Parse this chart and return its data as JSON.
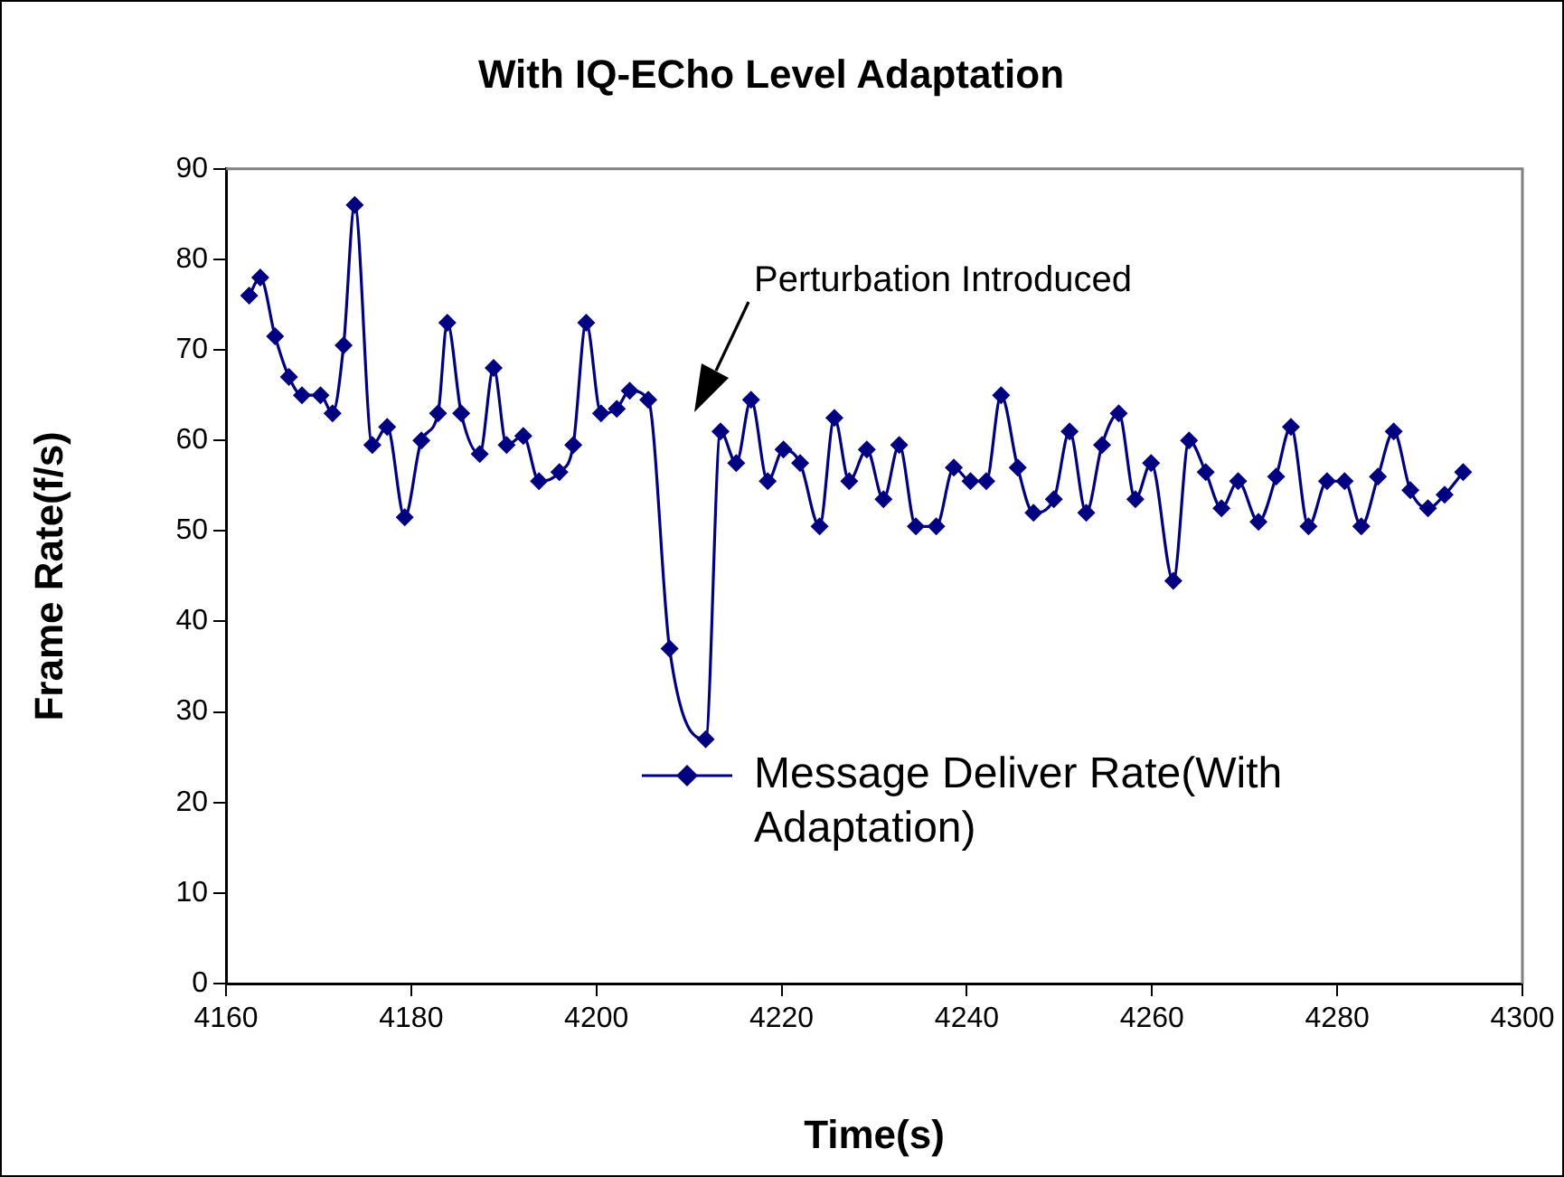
{
  "chart_data": {
    "type": "line",
    "title": "With IQ-ECho Level Adaptation",
    "xlabel": "Time(s)",
    "ylabel": "Frame Rate(f/s)",
    "xlim": [
      4160,
      4300
    ],
    "xticks": [
      4160,
      4180,
      4200,
      4220,
      4240,
      4260,
      4280,
      4300
    ],
    "ylim": [
      0,
      90
    ],
    "yticks": [
      0,
      10,
      20,
      30,
      40,
      50,
      60,
      70,
      80,
      90
    ],
    "grid": false,
    "legend": "bottom",
    "marker": "diamond",
    "line_style": "solid",
    "annotations": [
      "Perturbation Introduced"
    ],
    "series": [
      {
        "name": "Message Deliver Rate(With Adaptation)",
        "color": "#000080",
        "x": [
          4162.5,
          4163.7,
          4165.3,
          4166.8,
          4168.2,
          4170.2,
          4171.5,
          4172.7,
          4173.9,
          4175.8,
          4177.4,
          4179.3,
          4181.1,
          4182.9,
          4183.9,
          4185.4,
          4187.4,
          4188.9,
          4190.3,
          4192.1,
          4193.8,
          4196.0,
          4197.5,
          4198.9,
          4200.5,
          4202.2,
          4203.6,
          4205.6,
          4207.9,
          4211.8,
          4213.4,
          4215.1,
          4216.7,
          4218.5,
          4220.2,
          4222.0,
          4224.1,
          4225.7,
          4227.3,
          4229.2,
          4231.0,
          4232.7,
          4234.5,
          4236.7,
          4238.6,
          4240.4,
          4242.1,
          4243.7,
          4245.5,
          4247.2,
          4249.4,
          4251.1,
          4252.9,
          4254.6,
          4256.4,
          4258.2,
          4259.9,
          4262.3,
          4264.0,
          4265.8,
          4267.5,
          4269.3,
          4271.5,
          4273.4,
          4275.0,
          4276.9,
          4278.9,
          4280.8,
          4282.6,
          4284.4,
          4286.1,
          4287.9,
          4289.8,
          4291.6,
          4293.6
        ],
        "values": [
          76,
          78,
          71.5,
          67,
          65,
          65,
          63,
          70.5,
          86,
          59.5,
          61.5,
          51.5,
          60,
          63,
          73,
          63,
          58.5,
          68,
          59.5,
          60.5,
          55.5,
          56.5,
          59.5,
          73,
          63,
          63.5,
          65.5,
          64.5,
          37,
          27,
          61,
          57.5,
          64.5,
          55.5,
          59,
          57.5,
          50.5,
          62.5,
          55.5,
          59,
          53.5,
          59.5,
          50.5,
          50.5,
          57,
          55.5,
          55.5,
          65,
          57,
          52,
          53.5,
          61,
          52,
          59.5,
          63,
          53.5,
          57.5,
          44.5,
          60,
          56.5,
          52.5,
          55.5,
          51,
          56,
          61.5,
          50.5,
          55.5,
          55.5,
          50.5,
          56,
          61,
          54.5,
          52.5,
          54,
          56.5
        ]
      }
    ]
  }
}
